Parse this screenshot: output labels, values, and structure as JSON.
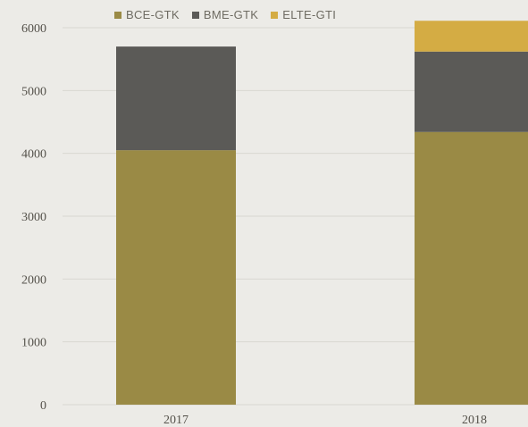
{
  "chart_data": {
    "type": "bar",
    "stacked": true,
    "categories": [
      "2017",
      "2018"
    ],
    "series": [
      {
        "name": "BCE-GTK",
        "color": "#9a8a45",
        "values": [
          4050,
          4340
        ]
      },
      {
        "name": "BME-GTK",
        "color": "#5b5a57",
        "values": [
          1650,
          1280
        ]
      },
      {
        "name": "ELTE-GTI",
        "color": "#d4ac44",
        "values": [
          0,
          490
        ]
      }
    ],
    "yticks": [
      0,
      1000,
      2000,
      3000,
      4000,
      5000,
      6000
    ],
    "ylim": [
      0,
      6000
    ],
    "grid": true,
    "legend_position": "top"
  }
}
